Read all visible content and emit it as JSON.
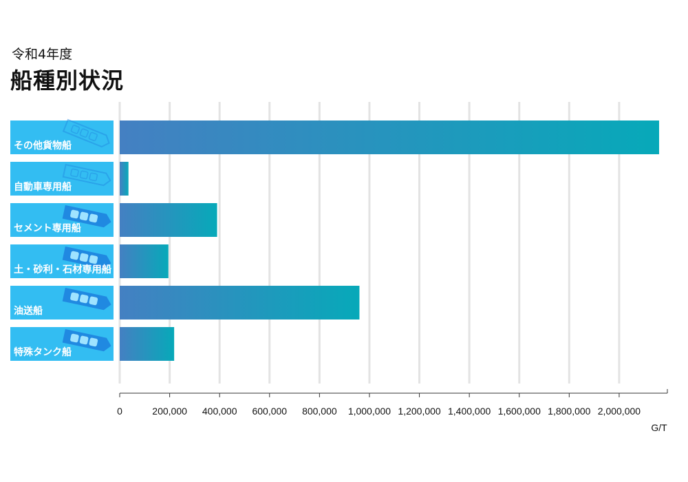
{
  "header": {
    "subtitle": "令和4年度",
    "title": "船種別状況"
  },
  "chart_data": {
    "type": "bar",
    "orientation": "horizontal",
    "title": "船種別状況",
    "subtitle": "令和4年度",
    "categories": [
      "その他貨物船",
      "自動車専用船",
      "セメント専用船",
      "土・砂利・石材専用船",
      "油送船",
      "特殊タンク船"
    ],
    "category_icons": [
      "cargo-ship-icon",
      "car-carrier-icon",
      "cement-carrier-icon",
      "gravel-carrier-icon",
      "oil-tanker-icon",
      "special-tanker-icon"
    ],
    "values": [
      2160000,
      35000,
      390000,
      195000,
      960000,
      218000
    ],
    "xlabel": "G/T",
    "xlim": [
      0,
      2160000
    ],
    "ticks": [
      0,
      200000,
      400000,
      600000,
      800000,
      1000000,
      1200000,
      1400000,
      1600000,
      1800000,
      2000000
    ],
    "tick_labels": [
      "0",
      "200,000",
      "400,000",
      "600,000",
      "800,000",
      "1,000,000",
      "1,200,000",
      "1,400,000",
      "1,600,000",
      "1,800,000",
      "2,000,000"
    ],
    "grid": true,
    "colors": {
      "bar_start": "#4480c2",
      "bar_end": "#07a9b9",
      "label_bg": "#33bdf2",
      "icon": "#1f84e0",
      "grid": "#e3e3e3",
      "axis": "#333333"
    }
  }
}
